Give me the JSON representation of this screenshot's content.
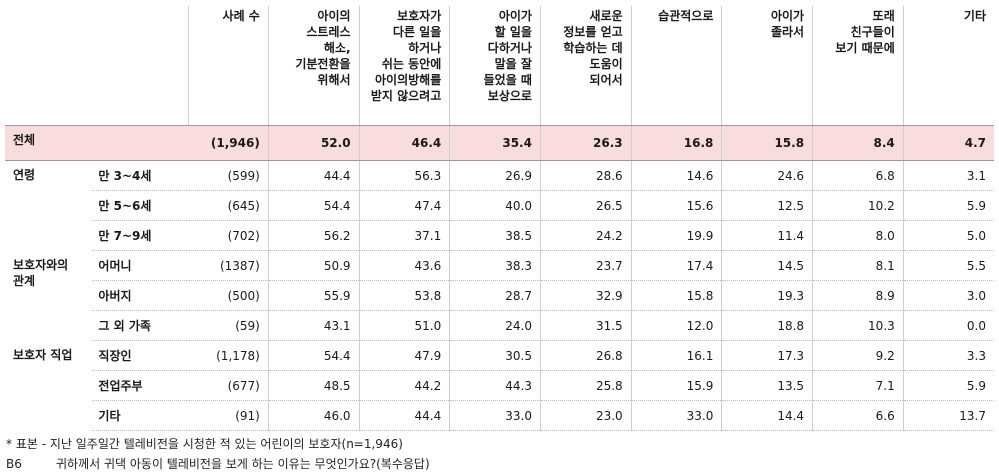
{
  "headers": {
    "count": "사례 수",
    "c1": "아이의\n스트레스\n해소,\n기분전환을\n위해서",
    "c2": "보호자가\n다른 일을\n하거나\n쉬는 동안에\n아이의방해를\n받지 않으려고",
    "c3": "아이가\n할 일을\n다하거나\n말을 잘\n들었을 때\n보상으로",
    "c4": "새로운\n정보를 얻고\n학습하는 데\n도움이\n되어서",
    "c5": "습관적으로",
    "c6": "아이가\n졸라서",
    "c7": "또래\n친구들이\n보기 때문에",
    "c8": "기타"
  },
  "total": {
    "label": "전체",
    "n": "(1,946)",
    "values": [
      "52.0",
      "46.4",
      "35.4",
      "26.3",
      "16.8",
      "15.8",
      "8.4",
      "4.7"
    ]
  },
  "groups": [
    {
      "label": "연령",
      "rows": [
        {
          "label": "만 3~4세",
          "n": "(599)",
          "values": [
            "44.4",
            "56.3",
            "26.9",
            "28.6",
            "14.6",
            "24.6",
            "6.8",
            "3.1"
          ]
        },
        {
          "label": "만 5~6세",
          "n": "(645)",
          "values": [
            "54.4",
            "47.4",
            "40.0",
            "26.5",
            "15.6",
            "12.5",
            "10.2",
            "5.9"
          ]
        },
        {
          "label": "만 7~9세",
          "n": "(702)",
          "values": [
            "56.2",
            "37.1",
            "38.5",
            "24.2",
            "19.9",
            "11.4",
            "8.0",
            "5.0"
          ]
        }
      ]
    },
    {
      "label": "보호자와의\n관계",
      "rows": [
        {
          "label": "어머니",
          "n": "(1387)",
          "values": [
            "50.9",
            "43.6",
            "38.3",
            "23.7",
            "17.4",
            "14.5",
            "8.1",
            "5.5"
          ]
        },
        {
          "label": "아버지",
          "n": "(500)",
          "values": [
            "55.9",
            "53.8",
            "28.7",
            "32.9",
            "15.8",
            "19.3",
            "8.9",
            "3.0"
          ]
        },
        {
          "label": "그 외 가족",
          "n": "(59)",
          "values": [
            "43.1",
            "51.0",
            "24.0",
            "31.5",
            "12.0",
            "18.8",
            "10.3",
            "0.0"
          ]
        }
      ]
    },
    {
      "label": "보호자 직업",
      "rows": [
        {
          "label": "직장인",
          "n": "(1,178)",
          "values": [
            "54.4",
            "47.9",
            "30.5",
            "26.8",
            "16.1",
            "17.3",
            "9.2",
            "3.3"
          ]
        },
        {
          "label": "전업주부",
          "n": "(677)",
          "values": [
            "48.5",
            "44.2",
            "44.3",
            "25.8",
            "15.9",
            "13.5",
            "7.1",
            "5.9"
          ]
        },
        {
          "label": "기타",
          "n": "(91)",
          "values": [
            "46.0",
            "44.4",
            "33.0",
            "23.0",
            "33.0",
            "14.4",
            "6.6",
            "13.7"
          ]
        }
      ]
    }
  ],
  "footnote": "* 표본 - 지난 일주일간 텔레비전을 시청한 적 있는 어린이의 보호자(n=1,946)",
  "question": {
    "tag": "B6",
    "text": "귀하께서 귀댁 아동이 텔레비전을 보게 하는 이유는 무엇인가요?(복수응답)"
  }
}
